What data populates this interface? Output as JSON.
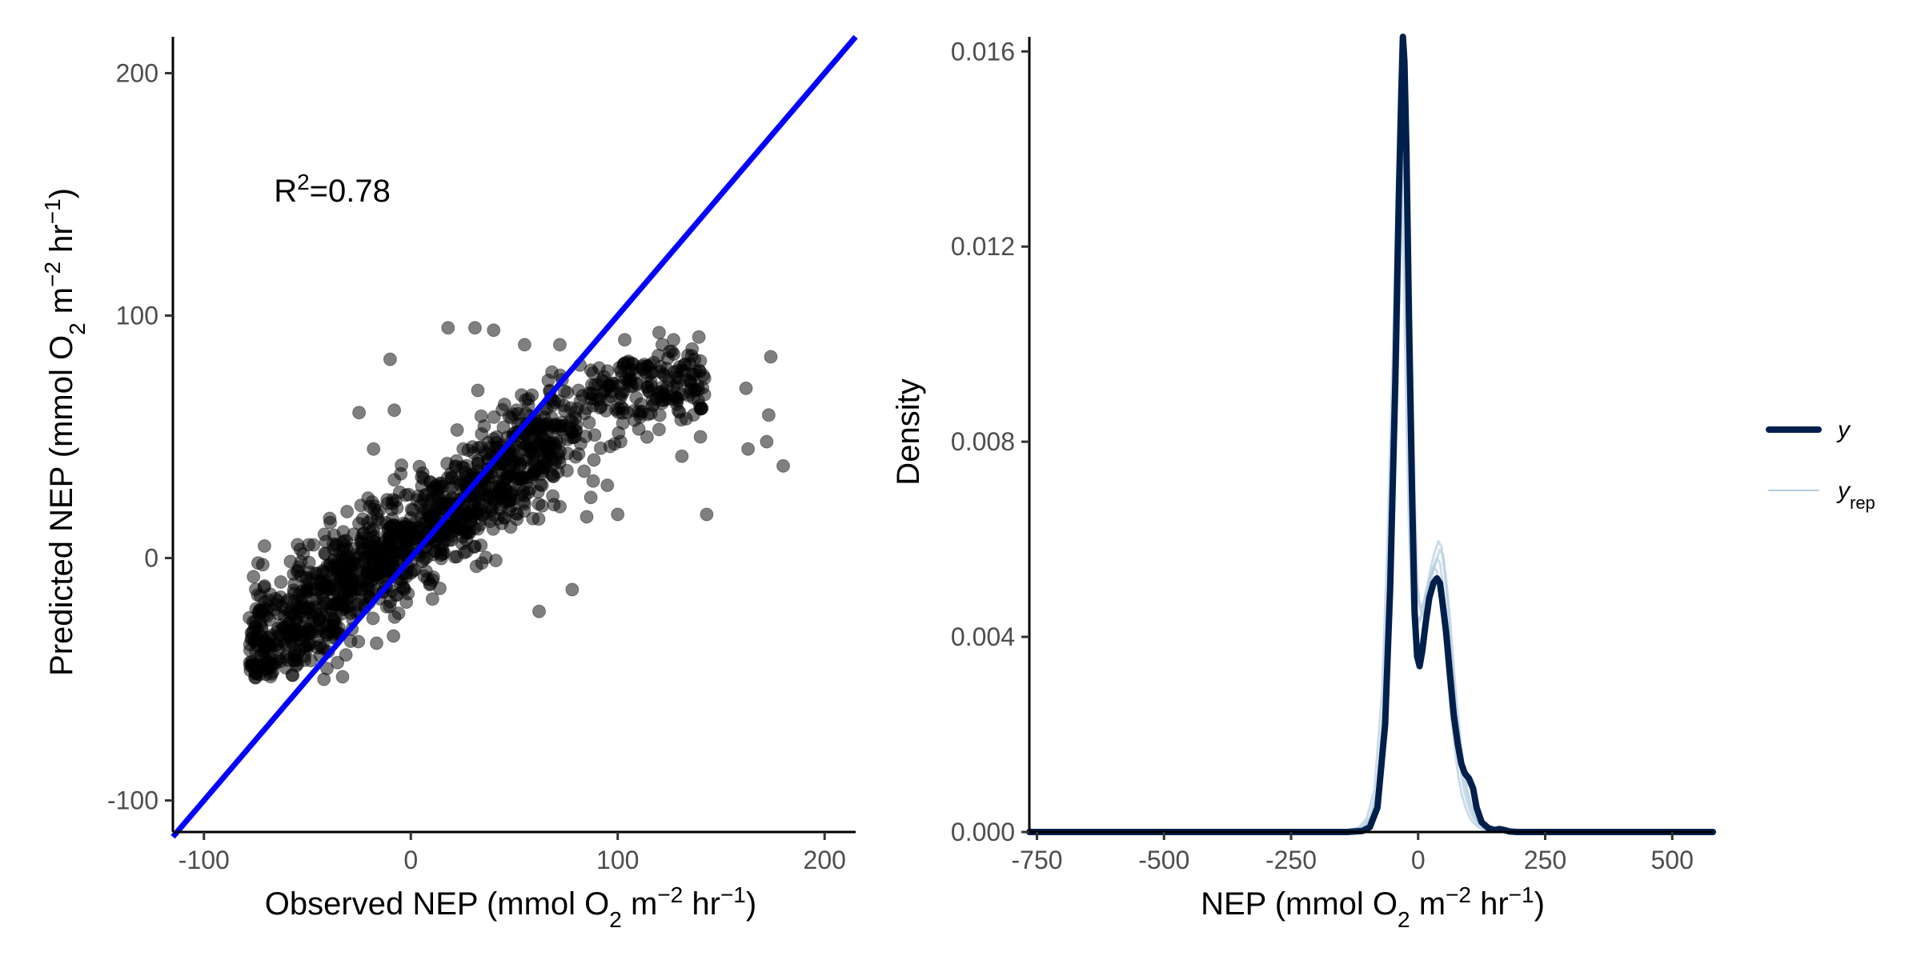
{
  "chart_data": [
    {
      "type": "scatter",
      "title": "",
      "xlabel": {
        "prefix": "Observed NEP (mmol O",
        "sub": "2",
        "mid": " m",
        "sup1": "−2",
        "mid2": " hr",
        "sup2": "−1",
        "suffix": ")"
      },
      "ylabel": {
        "prefix": "Predicted NEP (mmol O",
        "sub": "2",
        "mid": " m",
        "sup1": "−2",
        "mid2": " hr",
        "sup2": "−1",
        "suffix": ")"
      },
      "xlim": [
        -115,
        215
      ],
      "ylim": [
        -113,
        215
      ],
      "x_ticks": [
        -100,
        0,
        100,
        200
      ],
      "y_ticks": [
        -100,
        0,
        100,
        200
      ],
      "x_tick_labels": [
        "-100",
        "0",
        "100",
        "200"
      ],
      "y_tick_labels": [
        "-100",
        "0",
        "100",
        "200"
      ],
      "annotation": {
        "base": "R",
        "sup": "2",
        "rest": "=0.78",
        "x": -38,
        "y": 147
      },
      "reference_line": {
        "slope": 1,
        "intercept": 0,
        "color": "#0000ff"
      },
      "point_color": "#000000",
      "point_alpha": 0.5,
      "outlier_points": [
        [
          62,
          -22
        ],
        [
          78,
          -13
        ],
        [
          143,
          18
        ],
        [
          180,
          38
        ],
        [
          172,
          48
        ],
        [
          163,
          45
        ],
        [
          173,
          59
        ],
        [
          162,
          70
        ],
        [
          174,
          83
        ],
        [
          120,
          93
        ],
        [
          127,
          90
        ],
        [
          72,
          88
        ],
        [
          55,
          88
        ],
        [
          31,
          95
        ],
        [
          18,
          95
        ],
        [
          40,
          94
        ],
        [
          -10,
          82
        ],
        [
          -25,
          60
        ],
        [
          -18,
          45
        ],
        [
          -8,
          61
        ],
        [
          140,
          50
        ],
        [
          131,
          42
        ],
        [
          120,
          53
        ],
        [
          95,
          30
        ],
        [
          87,
          25
        ],
        [
          100,
          18
        ],
        [
          85,
          17
        ],
        [
          -42,
          -50
        ],
        [
          -33,
          -49
        ],
        [
          -70,
          -48
        ]
      ],
      "cluster_spec": {
        "count": 1450,
        "seed": 7,
        "x_range": [
          -82,
          145
        ],
        "resid_slope": 0.6,
        "resid_sd": 12,
        "y_min": -50
      }
    },
    {
      "type": "line",
      "title": "",
      "xlabel": {
        "prefix": "NEP (mmol O",
        "sub": "2",
        "mid": " m",
        "sup1": "−2",
        "mid2": " hr",
        "sup2": "−1",
        "suffix": ")"
      },
      "ylabel": "Density",
      "xlim": [
        -765,
        580
      ],
      "ylim": [
        0,
        0.0163
      ],
      "x_ticks": [
        -750,
        -500,
        -250,
        0,
        250,
        500
      ],
      "x_tick_labels": [
        "-750",
        "-500",
        "-250",
        "0",
        "250",
        "500"
      ],
      "y_ticks": [
        0,
        0.004,
        0.008,
        0.012,
        0.016
      ],
      "y_tick_labels": [
        "0.000",
        "0.004",
        "0.008",
        "0.012",
        "0.016"
      ],
      "series": [
        {
          "name": "y",
          "color": "#011f4b",
          "x": [
            -765,
            -200,
            -140,
            -110,
            -95,
            -80,
            -65,
            -55,
            -45,
            -38,
            -33,
            -30,
            -27,
            -23,
            -18,
            -12,
            -7,
            -2,
            3,
            8,
            15,
            22,
            30,
            37,
            43,
            48,
            55,
            62,
            70,
            78,
            85,
            92,
            100,
            108,
            115,
            125,
            138,
            150,
            160,
            170,
            180,
            195,
            580
          ],
          "y": [
            0,
            0,
            0,
            2e-05,
            0.0001,
            0.0005,
            0.0022,
            0.005,
            0.0092,
            0.013,
            0.0152,
            0.0163,
            0.0158,
            0.014,
            0.0105,
            0.007,
            0.0045,
            0.0036,
            0.0034,
            0.0037,
            0.0043,
            0.0048,
            0.0051,
            0.0052,
            0.0051,
            0.0047,
            0.0041,
            0.0033,
            0.0024,
            0.0018,
            0.0014,
            0.0012,
            0.0011,
            0.0009,
            0.0005,
            0.0002,
            8e-05,
            4e-05,
            6e-05,
            4e-05,
            1e-05,
            0,
            0
          ]
        },
        {
          "name": "y",
          "sub": "rep",
          "color": "#b3cde0",
          "x": [
            -765,
            -200,
            -140,
            -110,
            -95,
            -80,
            -65,
            -55,
            -45,
            -38,
            -33,
            -30,
            -27,
            -23,
            -18,
            -12,
            -7,
            -2,
            3,
            8,
            15,
            22,
            30,
            37,
            43,
            48,
            55,
            62,
            70,
            78,
            85,
            92,
            100,
            108,
            115,
            125,
            138,
            150,
            170,
            195,
            580
          ],
          "y": [
            0,
            0,
            2e-05,
            0.0001,
            0.0003,
            0.0009,
            0.003,
            0.006,
            0.0098,
            0.0128,
            0.0145,
            0.015,
            0.0143,
            0.0125,
            0.0095,
            0.0065,
            0.005,
            0.0045,
            0.0044,
            0.0045,
            0.0048,
            0.0052,
            0.0055,
            0.0057,
            0.0056,
            0.0052,
            0.0045,
            0.0036,
            0.0026,
            0.0018,
            0.0012,
            0.0008,
            0.0005,
            0.0003,
            0.0002,
            0.0001,
            4e-05,
            1e-05,
            0,
            0,
            0
          ]
        }
      ],
      "legend": {
        "position": "right",
        "entries": [
          {
            "label": "y",
            "sub": ""
          },
          {
            "label": "y",
            "sub": "rep"
          }
        ]
      }
    }
  ]
}
